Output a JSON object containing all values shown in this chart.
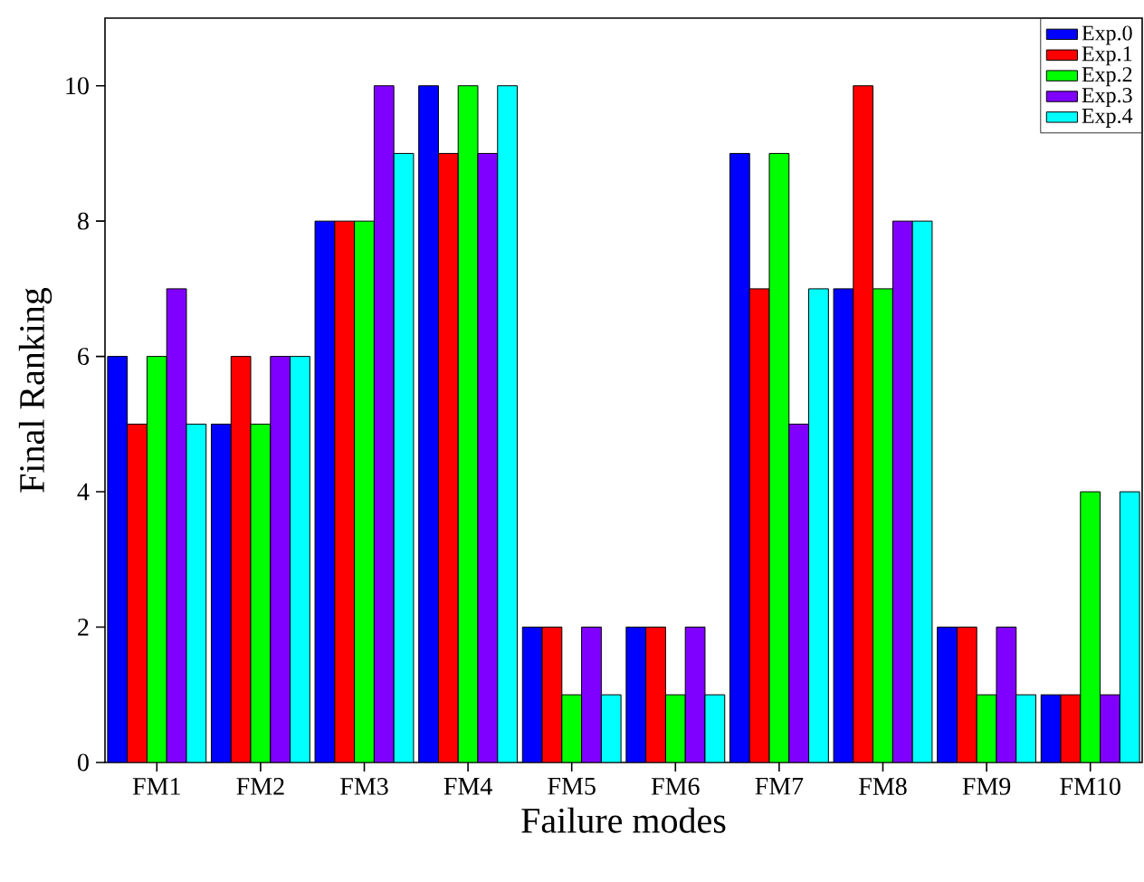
{
  "chart_data": {
    "type": "bar",
    "xlabel": "Failure modes",
    "ylabel": "Final Ranking",
    "categories": [
      "FM1",
      "FM2",
      "FM3",
      "FM4",
      "FM5",
      "FM6",
      "FM7",
      "FM8",
      "FM9",
      "FM10"
    ],
    "series": [
      {
        "name": "Exp.0",
        "color": "#0000ff",
        "values": [
          6,
          5,
          8,
          10,
          2,
          2,
          9,
          7,
          2,
          1
        ]
      },
      {
        "name": "Exp.1",
        "color": "#ff0000",
        "values": [
          5,
          6,
          8,
          9,
          2,
          2,
          7,
          10,
          2,
          1
        ]
      },
      {
        "name": "Exp.2",
        "color": "#00ff00",
        "values": [
          6,
          5,
          8,
          10,
          1,
          1,
          9,
          7,
          1,
          4
        ]
      },
      {
        "name": "Exp.3",
        "color": "#8000ff",
        "values": [
          7,
          6,
          10,
          9,
          2,
          2,
          5,
          8,
          2,
          1
        ]
      },
      {
        "name": "Exp.4",
        "color": "#00ffff",
        "values": [
          5,
          6,
          9,
          10,
          1,
          1,
          7,
          8,
          1,
          4
        ]
      }
    ],
    "ylim": [
      0,
      11
    ],
    "yticks": [
      0,
      2,
      4,
      6,
      8,
      10
    ],
    "grid": false,
    "legend": "top right"
  }
}
